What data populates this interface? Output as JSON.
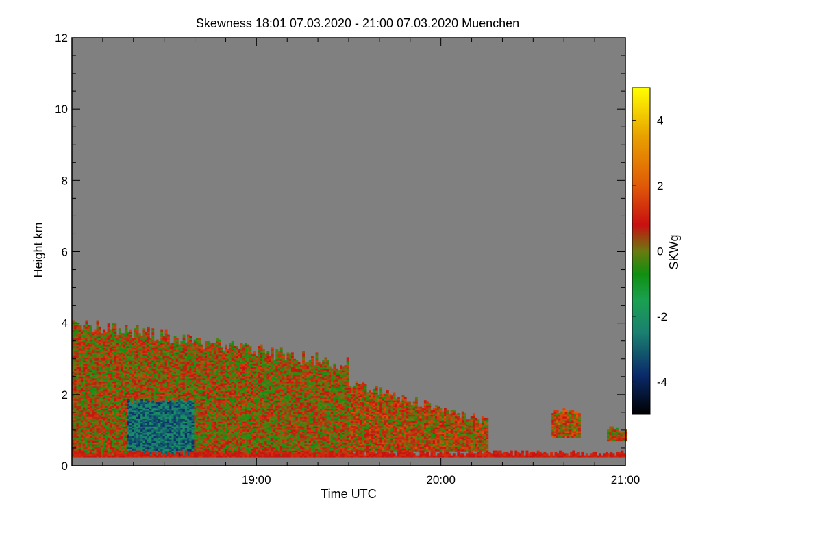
{
  "chart_data": {
    "type": "heatmap",
    "title": "Skewness   18:01 07.03.2020 - 21:00 07.03.2020 Muenchen",
    "xlabel": "Time UTC",
    "ylabel": "Height km",
    "xlim_hours": [
      18.0,
      21.0
    ],
    "ylim_km": [
      0,
      12
    ],
    "x_ticks": [
      {
        "value": 19.0,
        "label": "19:00"
      },
      {
        "value": 20.0,
        "label": "20:00"
      },
      {
        "value": 21.0,
        "label": "21:00"
      }
    ],
    "y_ticks": [
      {
        "value": 0,
        "label": "0"
      },
      {
        "value": 2,
        "label": "2"
      },
      {
        "value": 4,
        "label": "4"
      },
      {
        "value": 6,
        "label": "6"
      },
      {
        "value": 8,
        "label": "8"
      },
      {
        "value": 10,
        "label": "10"
      },
      {
        "value": 12,
        "label": "12"
      }
    ],
    "background_color": "#808080",
    "colorbar": {
      "label": "SKWg",
      "range": [
        -5,
        5
      ],
      "ticks": [
        {
          "value": 4,
          "label": "4"
        },
        {
          "value": 2,
          "label": "2"
        },
        {
          "value": 0,
          "label": "0"
        },
        {
          "value": -2,
          "label": "-2"
        },
        {
          "value": -4,
          "label": "-4"
        }
      ],
      "stops": [
        {
          "value": -5,
          "color": "#000000"
        },
        {
          "value": -3.8,
          "color": "#0a2a6a"
        },
        {
          "value": -2.5,
          "color": "#1a8070"
        },
        {
          "value": -1.5,
          "color": "#1aa050"
        },
        {
          "value": -0.7,
          "color": "#109010"
        },
        {
          "value": 0,
          "color": "#6a7a10"
        },
        {
          "value": 0.8,
          "color": "#c81010"
        },
        {
          "value": 2,
          "color": "#e05a08"
        },
        {
          "value": 3.5,
          "color": "#e8a000"
        },
        {
          "value": 5,
          "color": "#ffff00"
        }
      ]
    },
    "regions": [
      {
        "name": "boundary-layer-main",
        "t_start": 18.0,
        "t_end": 19.5,
        "h_min": 0.3,
        "h_max": 4.0,
        "skew_mean": 0.3
      },
      {
        "name": "boundary-layer-decay",
        "t_start": 19.5,
        "t_end": 20.25,
        "h_min": 0.4,
        "h_max": 2.3,
        "skew_mean": 0.6
      },
      {
        "name": "negative-skewness-core",
        "t_start": 18.3,
        "t_end": 18.65,
        "h_min": 0.3,
        "h_max": 1.8,
        "skew_mean": -2.8
      },
      {
        "name": "isolated-patch-1",
        "t_start": 20.6,
        "t_end": 20.75,
        "h_min": 0.8,
        "h_max": 1.5,
        "skew_mean": 0.8
      },
      {
        "name": "isolated-patch-2",
        "t_start": 20.9,
        "t_end": 21.0,
        "h_min": 0.7,
        "h_max": 1.0,
        "skew_mean": 0.4
      },
      {
        "name": "near-surface-band",
        "t_start": 18.0,
        "t_end": 21.0,
        "h_min": 0.25,
        "h_max": 0.35,
        "skew_mean": 1.0
      }
    ]
  }
}
